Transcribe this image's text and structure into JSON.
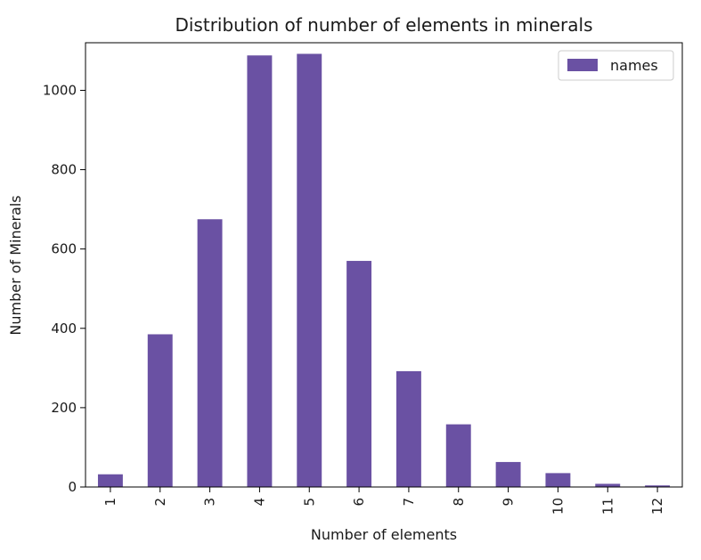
{
  "chart_data": {
    "type": "bar",
    "title": "Distribution of number of elements in minerals",
    "xlabel": "Number of elements",
    "ylabel": "Number of Minerals",
    "categories": [
      "1",
      "2",
      "3",
      "4",
      "5",
      "6",
      "7",
      "8",
      "9",
      "10",
      "11",
      "12"
    ],
    "series": [
      {
        "name": "names",
        "color": "#6a51a3",
        "values": [
          32,
          385,
          675,
          1088,
          1092,
          570,
          292,
          158,
          63,
          35,
          8,
          4
        ]
      }
    ],
    "ylim": [
      0,
      1120
    ],
    "yticks": [
      0,
      200,
      400,
      600,
      800,
      1000
    ],
    "grid": false,
    "legend_position": "top-right"
  }
}
